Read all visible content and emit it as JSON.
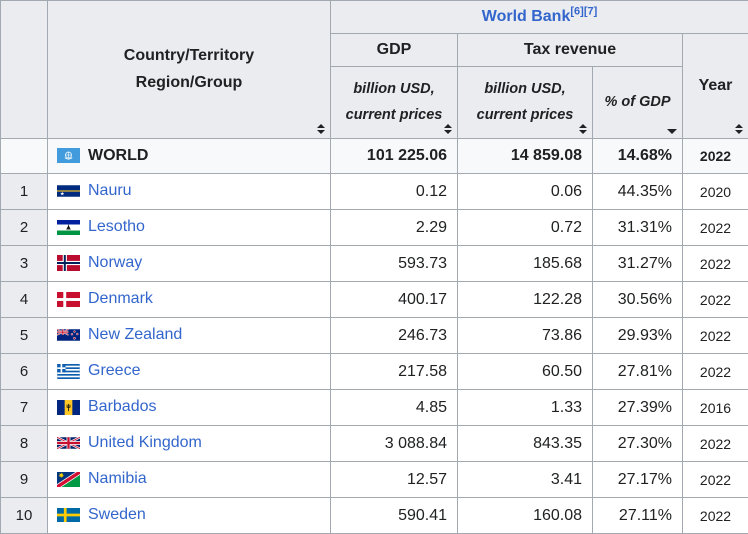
{
  "header": {
    "source_label": "World Bank",
    "ref1": "[6]",
    "ref2": "[7]",
    "country_line1": "Country/Territory",
    "country_line2": "Region/Group",
    "gdp": "GDP",
    "tax_revenue": "Tax revenue",
    "gdp_sub_line1": "billion USD,",
    "gdp_sub_line2": "current prices",
    "tax_sub_line1": "billion USD,",
    "tax_sub_line2": "current prices",
    "pct_gdp": "% of GDP",
    "year": "Year",
    "pct_gdp_sort_state": "descending"
  },
  "world": {
    "name": "WORLD",
    "flag": "un",
    "gdp": "101 225.06",
    "tax": "14 859.08",
    "pct": "14.68%",
    "year": "2022"
  },
  "rows": [
    {
      "rank": "1",
      "name": "Nauru",
      "flag": "nauru",
      "gdp": "0.12",
      "tax": "0.06",
      "pct": "44.35%",
      "year": "2020"
    },
    {
      "rank": "2",
      "name": "Lesotho",
      "flag": "lesotho",
      "gdp": "2.29",
      "tax": "0.72",
      "pct": "31.31%",
      "year": "2022"
    },
    {
      "rank": "3",
      "name": "Norway",
      "flag": "norway",
      "gdp": "593.73",
      "tax": "185.68",
      "pct": "31.27%",
      "year": "2022"
    },
    {
      "rank": "4",
      "name": "Denmark",
      "flag": "denmark",
      "gdp": "400.17",
      "tax": "122.28",
      "pct": "30.56%",
      "year": "2022"
    },
    {
      "rank": "5",
      "name": "New Zealand",
      "flag": "nz",
      "gdp": "246.73",
      "tax": "73.86",
      "pct": "29.93%",
      "year": "2022"
    },
    {
      "rank": "6",
      "name": "Greece",
      "flag": "greece",
      "gdp": "217.58",
      "tax": "60.50",
      "pct": "27.81%",
      "year": "2022"
    },
    {
      "rank": "7",
      "name": "Barbados",
      "flag": "barbados",
      "gdp": "4.85",
      "tax": "1.33",
      "pct": "27.39%",
      "year": "2016"
    },
    {
      "rank": "8",
      "name": "United Kingdom",
      "flag": "uk",
      "gdp": "3 088.84",
      "tax": "843.35",
      "pct": "27.30%",
      "year": "2022"
    },
    {
      "rank": "9",
      "name": "Namibia",
      "flag": "namibia",
      "gdp": "12.57",
      "tax": "3.41",
      "pct": "27.17%",
      "year": "2022"
    },
    {
      "rank": "10",
      "name": "Sweden",
      "flag": "sweden",
      "gdp": "590.41",
      "tax": "160.08",
      "pct": "27.11%",
      "year": "2022"
    }
  ],
  "colors": {
    "link": "#3366cc",
    "header_bg": "#eaecf0",
    "border": "#a2a9b1",
    "world_row_bg": "#f8f9fa"
  }
}
